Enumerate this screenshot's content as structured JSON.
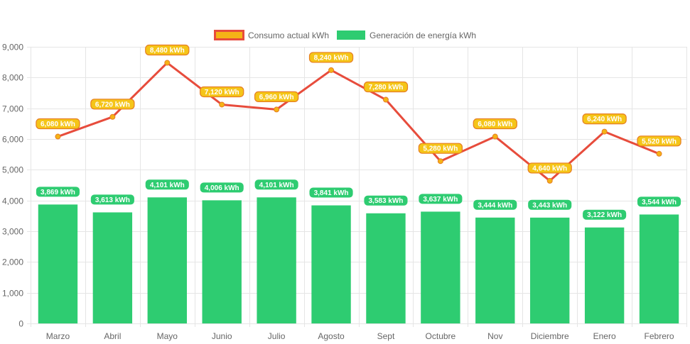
{
  "colors": {
    "bar": "#2ECC71",
    "line": "#E74C3C",
    "point": "#F5B316",
    "consumption_label": "#F5C518",
    "consumption_label_border": "#E67E22",
    "generation_label": "#2ECC71",
    "grid": "#E5E5E5",
    "axis_text": "#666666"
  },
  "chart_data": {
    "type": "bar",
    "title": "",
    "xlabel": "",
    "ylabel": "",
    "ylim": [
      0,
      9000
    ],
    "grid": true,
    "legend_position": "top-center",
    "categories": [
      "Marzo",
      "Abril",
      "Mayo",
      "Junio",
      "Julio",
      "Agosto",
      "Sept",
      "Octubre",
      "Nov",
      "Diciembre",
      "Enero",
      "Febrero"
    ],
    "y_ticks": [
      "0",
      "1,000",
      "2,000",
      "3,000",
      "4,000",
      "5,000",
      "6,000",
      "7,000",
      "8,000",
      "9,000"
    ],
    "series": [
      {
        "name": "Consumo actual kWh",
        "type": "line",
        "values": [
          6080,
          6720,
          8480,
          7120,
          6960,
          8240,
          7280,
          5280,
          6080,
          4640,
          6240,
          5520
        ],
        "labels": [
          "6,080 kWh",
          "6,720 kWh",
          "8,480 kWh",
          "7,120 kWh",
          "6,960 kWh",
          "8,240 kWh",
          "7,280 kWh",
          "5,280 kWh",
          "6,080 kWh",
          "4,640 kWh",
          "6,240 kWh",
          "5,520 kWh"
        ]
      },
      {
        "name": "Generación de energía kWh",
        "type": "bar",
        "values": [
          3869,
          3613,
          4101,
          4006,
          4101,
          3841,
          3583,
          3637,
          3444,
          3443,
          3122,
          3544
        ],
        "labels": [
          "3,869 kWh",
          "3,613 kWh",
          "4,101 kWh",
          "4,006 kWh",
          "4,101 kWh",
          "3,841 kWh",
          "3,583 kWh",
          "3,637 kWh",
          "3,444 kWh",
          "3,443 kWh",
          "3,122 kWh",
          "3,544 kWh"
        ]
      }
    ]
  }
}
